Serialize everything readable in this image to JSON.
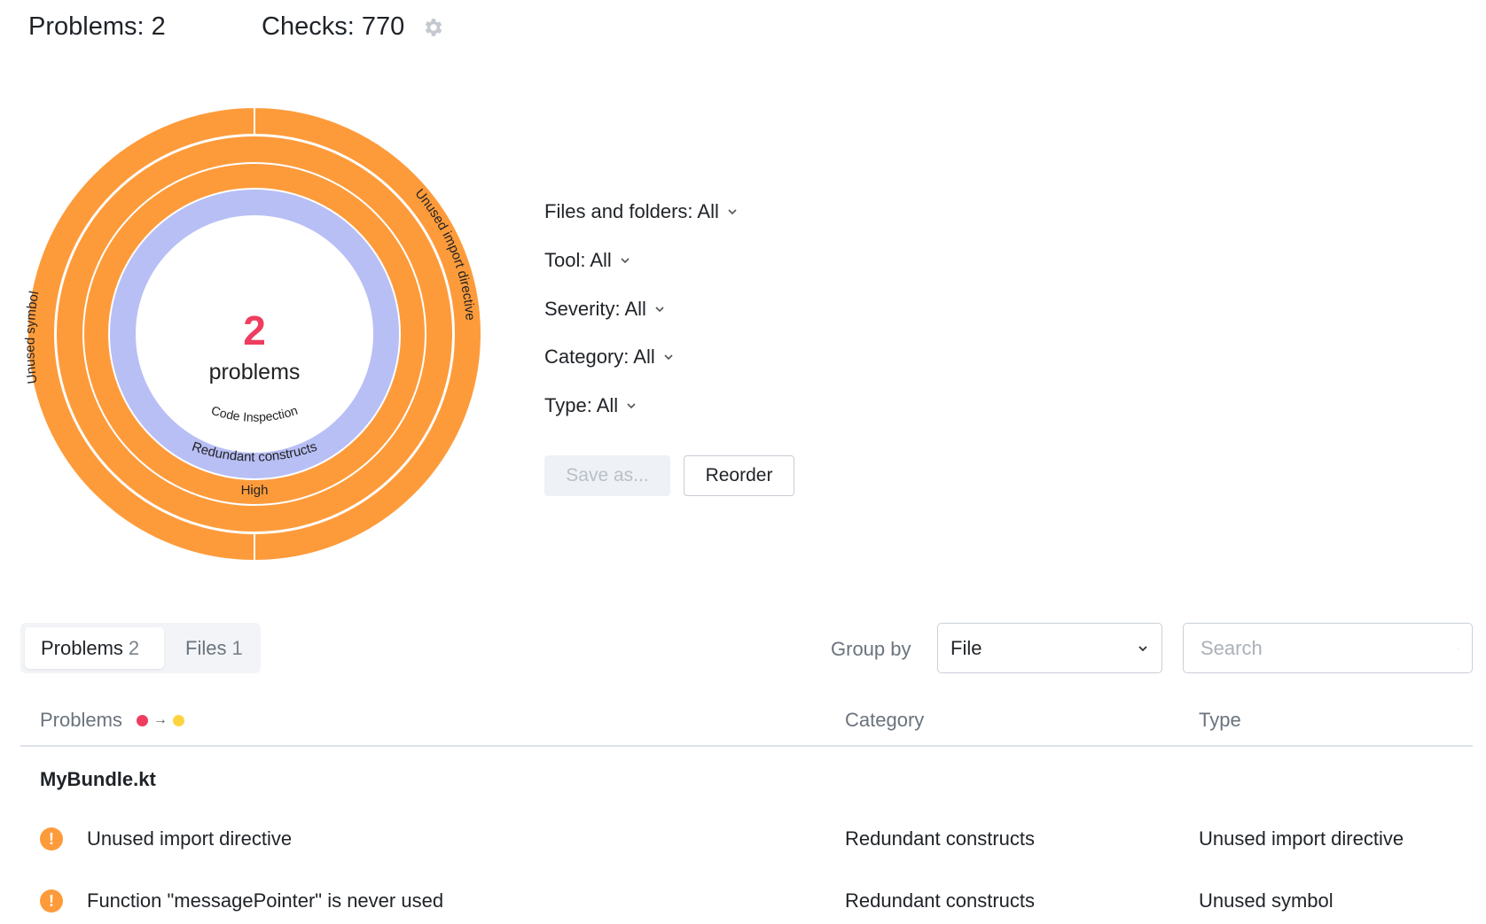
{
  "header": {
    "problems_label": "Problems: 2",
    "checks_label": "Checks: 770",
    "settings_icon": "gear-icon"
  },
  "chart_data": {
    "type": "sunburst",
    "center": {
      "value": "2",
      "label": "problems"
    },
    "colors": {
      "tool": "#b8bff5",
      "orange": "#fd9b3b",
      "center_value": "#ee3d5e"
    },
    "rings": [
      {
        "level": "Tool",
        "segments": [
          {
            "label": "Code Inspection",
            "value": 2,
            "color": "#b8bff5"
          }
        ]
      },
      {
        "level": "Severity",
        "segments": [
          {
            "label": "High",
            "value": 2,
            "color": "#fd9b3b"
          }
        ]
      },
      {
        "level": "Category",
        "segments": [
          {
            "label": "Redundant constructs",
            "value": 2,
            "color": "#fd9b3b"
          }
        ]
      },
      {
        "level": "Type",
        "segments": [
          {
            "label": "Unused import directive",
            "value": 1,
            "color": "#fd9b3b"
          },
          {
            "label": "Unused symbol",
            "value": 1,
            "color": "#fd9b3b"
          }
        ]
      }
    ]
  },
  "filters": [
    {
      "label": "Files and folders: All"
    },
    {
      "label": "Tool: All"
    },
    {
      "label": "Severity: All"
    },
    {
      "label": "Category: All"
    },
    {
      "label": "Type: All"
    }
  ],
  "buttons": {
    "save_as": "Save as...",
    "reorder": "Reorder"
  },
  "tabs": [
    {
      "label": "Problems",
      "count": "2",
      "active": true
    },
    {
      "label": "Files",
      "count": "1",
      "active": false
    }
  ],
  "group_by": {
    "label": "Group by",
    "value": "File"
  },
  "search": {
    "placeholder": "Search"
  },
  "table": {
    "columns": [
      "Problems",
      "Category",
      "Type"
    ],
    "severity_sort": {
      "from_color": "#ee3d5e",
      "to_color": "#fdd440"
    },
    "groups": [
      {
        "file": "MyBundle.kt",
        "rows": [
          {
            "problem": "Unused import directive",
            "category": "Redundant constructs",
            "type": "Unused import directive"
          },
          {
            "problem": "Function \"messagePointer\" is never used",
            "category": "Redundant constructs",
            "type": "Unused symbol"
          }
        ]
      }
    ]
  }
}
